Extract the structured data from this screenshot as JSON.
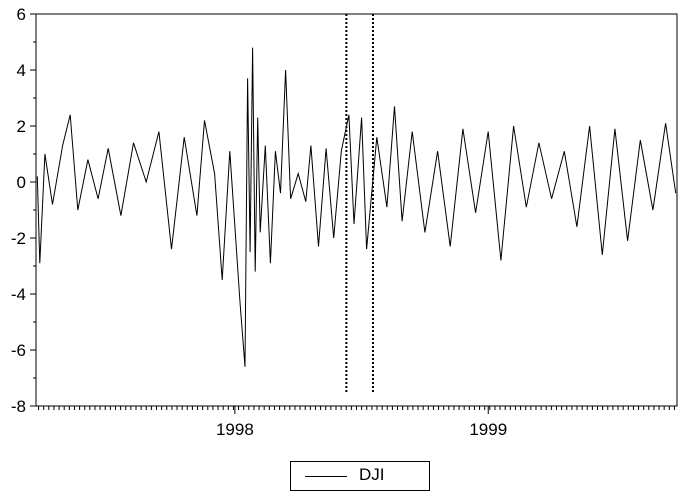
{
  "chart_data": {
    "type": "line",
    "title": "",
    "xlabel": "",
    "ylabel": "",
    "ylim": [
      -8,
      6
    ],
    "yticks": [
      6,
      4,
      2,
      0,
      -2,
      -4,
      -6,
      -8
    ],
    "ytick_labels": [
      "6",
      "4",
      "2",
      "0",
      "-2",
      "-4",
      "-6",
      "-8"
    ],
    "x_labels": [
      {
        "label": "1998",
        "at": 1998.0
      },
      {
        "label": "1999",
        "at": 1999.0
      }
    ],
    "xlim": [
      1997.215,
      1999.745
    ],
    "vlines_dotted": [
      1998.44,
      1998.545
    ],
    "legend_position": "bottom-center",
    "series": [
      {
        "name": "DJI",
        "color": "#000000",
        "x": [
          1997.22,
          1997.23,
          1997.25,
          1997.28,
          1997.32,
          1997.35,
          1997.38,
          1997.42,
          1997.46,
          1997.5,
          1997.55,
          1997.6,
          1997.65,
          1997.7,
          1997.75,
          1997.8,
          1997.85,
          1997.88,
          1997.92,
          1997.95,
          1997.98,
          1998.02,
          1998.04,
          1998.05,
          1998.06,
          1998.07,
          1998.08,
          1998.09,
          1998.1,
          1998.12,
          1998.14,
          1998.16,
          1998.18,
          1998.2,
          1998.22,
          1998.25,
          1998.28,
          1998.3,
          1998.33,
          1998.36,
          1998.39,
          1998.42,
          1998.45,
          1998.47,
          1998.5,
          1998.52,
          1998.56,
          1998.6,
          1998.63,
          1998.66,
          1998.7,
          1998.75,
          1998.8,
          1998.85,
          1998.9,
          1998.95,
          1999.0,
          1999.05,
          1999.1,
          1999.15,
          1999.2,
          1999.25,
          1999.3,
          1999.35,
          1999.4,
          1999.45,
          1999.5,
          1999.55,
          1999.6,
          1999.65,
          1999.7,
          1999.74
        ],
        "y": [
          0.2,
          -2.9,
          1.0,
          -0.8,
          1.3,
          2.4,
          -1.0,
          0.8,
          -0.6,
          1.2,
          -1.2,
          1.4,
          0.0,
          1.8,
          -2.4,
          1.6,
          -1.2,
          2.2,
          0.3,
          -3.5,
          1.1,
          -4.3,
          -6.6,
          3.7,
          -2.5,
          4.8,
          -3.2,
          2.3,
          -1.8,
          1.3,
          -2.9,
          1.1,
          -0.4,
          4.0,
          -0.6,
          0.3,
          -0.7,
          1.3,
          -2.3,
          1.2,
          -2.0,
          1.1,
          2.4,
          -1.5,
          2.3,
          -2.4,
          1.6,
          -0.9,
          2.7,
          -1.4,
          1.8,
          -1.8,
          1.1,
          -2.3,
          1.9,
          -1.1,
          1.8,
          -2.8,
          2.0,
          -0.9,
          1.4,
          -0.6,
          1.1,
          -1.6,
          2.0,
          -2.6,
          1.9,
          -2.1,
          1.5,
          -1.0,
          2.1,
          -0.4
        ]
      }
    ]
  }
}
